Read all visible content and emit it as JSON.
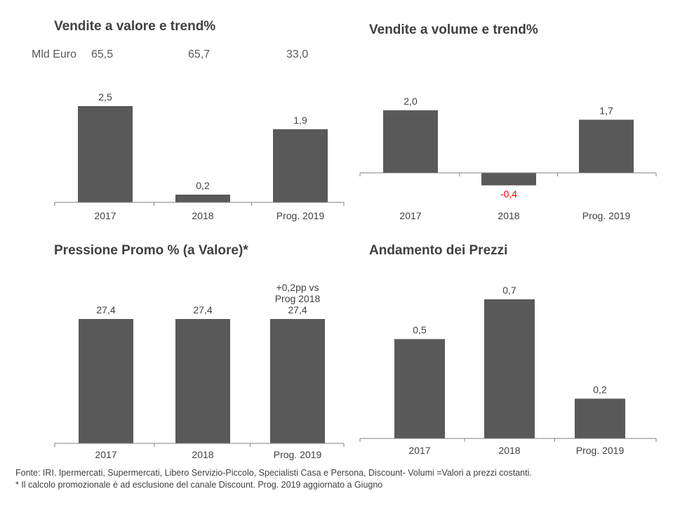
{
  "colors": {
    "bar": "#595959",
    "axis": "#808080",
    "text": "#404040",
    "negative_label": "#ff0000"
  },
  "totals": {
    "label": "Mld Euro",
    "values": [
      "65,5",
      "65,7",
      "33,0"
    ]
  },
  "chart_data": [
    {
      "type": "bar",
      "title": "Vendite a valore e trend%",
      "categories": [
        "2017",
        "2018",
        "Prog. 2019"
      ],
      "values": [
        2.5,
        0.2,
        1.9
      ],
      "value_labels": [
        "2,5",
        "0,2",
        "1,9"
      ],
      "xlabel": "",
      "ylabel": "",
      "ylim": [
        0,
        2.5
      ],
      "grid": false,
      "legend": "none"
    },
    {
      "type": "bar",
      "title": "Vendite a volume e trend%",
      "categories": [
        "2017",
        "2018",
        "Prog. 2019"
      ],
      "values": [
        2.0,
        -0.4,
        1.7
      ],
      "value_labels": [
        "2,0",
        "-0,4",
        "1,7"
      ],
      "xlabel": "",
      "ylabel": "",
      "ylim": [
        -0.4,
        2.0
      ],
      "grid": false,
      "legend": "none"
    },
    {
      "type": "bar",
      "title": "Pressione Promo % (a Valore)*",
      "categories": [
        "2017",
        "2018",
        "Prog. 2019"
      ],
      "values": [
        27.4,
        27.4,
        27.4
      ],
      "value_labels": [
        "27,4",
        "27,4",
        "27,4"
      ],
      "annotation": [
        "+0,2pp vs",
        "Prog 2018"
      ],
      "xlabel": "",
      "ylabel": "",
      "ylim": [
        0,
        27.4
      ],
      "grid": false,
      "legend": "none"
    },
    {
      "type": "bar",
      "title": "Andamento dei Prezzi",
      "categories": [
        "2017",
        "2018",
        "Prog. 2019"
      ],
      "values": [
        0.5,
        0.7,
        0.2
      ],
      "value_labels": [
        "0,5",
        "0,7",
        "0,2"
      ],
      "xlabel": "",
      "ylabel": "",
      "ylim": [
        0,
        0.7
      ],
      "grid": false,
      "legend": "none"
    }
  ],
  "footer": {
    "line1": "Fonte: IRI. Ipermercati, Supermercati, Libero Servizio-Piccolo, Specialisti Casa e Persona, Discount- Volumi =Valori a prezzi costanti.",
    "line2": "* Il calcolo promozionale è ad esclusione del canale Discount. Prog. 2019 aggiornato a Giugno"
  }
}
